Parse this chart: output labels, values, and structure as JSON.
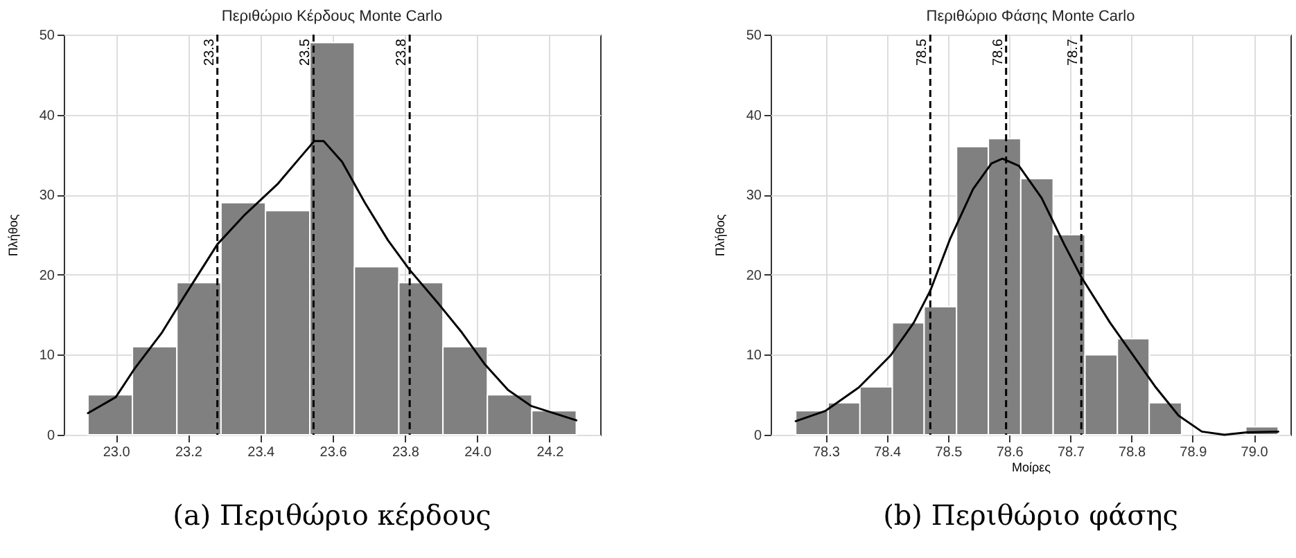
{
  "chart_data": [
    {
      "type": "histogram",
      "title": "Περιθώριο Κέρδους Monte Carlo",
      "ylabel": "Πλήθος",
      "annotations": [
        "(a) Περιθώριο κέρδους"
      ],
      "bins": [
        22.923,
        23.046,
        23.169,
        23.291,
        23.414,
        23.537,
        23.66,
        23.783,
        23.905,
        24.028,
        24.151,
        24.274
      ],
      "values": [
        5,
        11,
        19,
        29,
        28,
        49,
        21,
        19,
        11,
        5,
        3
      ],
      "color": "#808080",
      "series": [
        {
          "type": "line",
          "color": "#000000",
          "x": [
            22.923,
            23.0,
            23.051,
            23.128,
            23.191,
            23.281,
            23.357,
            23.447,
            23.511,
            23.549,
            23.575,
            23.626,
            23.689,
            23.753,
            23.813,
            23.894,
            23.957,
            24.021,
            24.085,
            24.149,
            24.274
          ],
          "values": [
            2.7,
            4.7,
            8.2,
            12.8,
            17.4,
            23.8,
            27.5,
            31.3,
            34.7,
            36.7,
            36.7,
            34.1,
            29.0,
            24.3,
            20.6,
            16.3,
            12.8,
            8.8,
            5.6,
            3.6,
            1.8
          ]
        }
      ],
      "ref_lines": [
        {
          "axis": "x",
          "value": 23.281,
          "label": "23.3",
          "line_style": "dashed"
        },
        {
          "axis": "x",
          "value": 23.547,
          "label": "23.5",
          "line_style": "dashed"
        },
        {
          "axis": "x",
          "value": 23.813,
          "label": "23.8",
          "line_style": "dashed"
        }
      ],
      "xlim": [
        22.856,
        24.34
      ],
      "ylim": [
        0,
        50
      ],
      "xticks": [
        {
          "value": 23,
          "label": "23.0"
        },
        23.2,
        23.4,
        23.6,
        23.8,
        {
          "value": 24,
          "label": "24.0"
        },
        24.2
      ],
      "yticks": [
        0,
        10,
        20,
        30,
        40,
        50
      ],
      "grid": true
    },
    {
      "type": "histogram",
      "title": "Περιθώριο Φάσης Monte Carlo",
      "xlabel": "Μοίρες",
      "ylabel": "Πλήθος",
      "annotations": [
        "(b) Περιθώριο φάσης"
      ],
      "bins": [
        78.251,
        78.304,
        78.356,
        78.409,
        78.461,
        78.514,
        78.566,
        78.619,
        78.672,
        78.724,
        78.777,
        78.829,
        78.882,
        78.987,
        79.04
      ],
      "values": [
        3,
        4,
        6,
        14,
        16,
        36,
        37,
        32,
        25,
        10,
        12,
        4,
        0,
        1
      ],
      "color": "#808080",
      "series": [
        {
          "type": "line",
          "color": "#000000",
          "x": [
            78.251,
            78.3,
            78.354,
            78.406,
            78.444,
            78.471,
            78.503,
            78.541,
            78.571,
            78.589,
            78.616,
            78.653,
            78.69,
            78.718,
            78.765,
            78.803,
            78.84,
            78.877,
            78.915,
            78.952,
            78.989,
            79.04
          ],
          "values": [
            1.7,
            3.0,
            5.9,
            9.9,
            14.0,
            18.0,
            24.4,
            30.7,
            33.9,
            34.5,
            33.6,
            29.6,
            23.8,
            19.7,
            14.0,
            9.9,
            5.9,
            2.4,
            0.4,
            0,
            0.3,
            0.4
          ]
        }
      ],
      "ref_lines": [
        {
          "axis": "x",
          "value": 78.471,
          "label": "78.5",
          "line_style": "dashed"
        },
        {
          "axis": "x",
          "value": 78.595,
          "label": "78.6",
          "line_style": "dashed"
        },
        {
          "axis": "x",
          "value": 78.718,
          "label": "78.7",
          "line_style": "dashed"
        }
      ],
      "xlim": [
        78.21,
        79.06
      ],
      "ylim": [
        0,
        50
      ],
      "xticks": [
        78.3,
        78.4,
        78.5,
        78.6,
        78.7,
        78.8,
        78.9,
        {
          "value": 79,
          "label": "79.0"
        }
      ],
      "yticks": [
        0,
        10,
        20,
        30,
        40,
        50
      ],
      "grid": true
    }
  ]
}
